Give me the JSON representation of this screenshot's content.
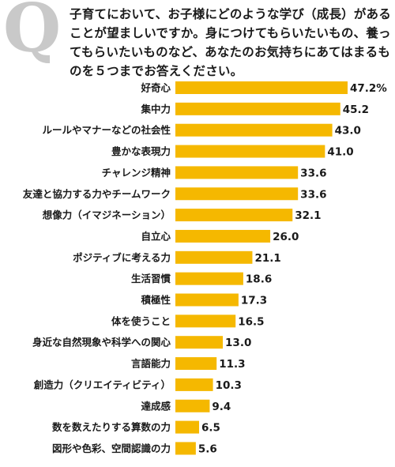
{
  "header": {
    "q_letter": "Q",
    "question": "子育てにおいて、お子様にどのような学び（成長）があることが望ましいですか。身につけてもらいたいもの、養ってもらいたいものなど、あなたのお気持ちにあてはまるものを５つまでお答えください。"
  },
  "colors": {
    "bar": "#f5b800"
  },
  "chart_data": {
    "type": "bar",
    "orientation": "horizontal",
    "title": "",
    "xlabel": "",
    "ylabel": "",
    "xlim": [
      0,
      47.2
    ],
    "grid": false,
    "legend": "none",
    "categories": [
      "好奇心",
      "集中力",
      "ルールやマナーなどの社会性",
      "豊かな表現力",
      "チャレンジ精神",
      "友達と協力する力やチームワーク",
      "想像力（イマジネーション）",
      "自立心",
      "ポジティブに考える力",
      "生活習慣",
      "積極性",
      "体を使うこと",
      "身近な自然現象や科学への関心",
      "言語能力",
      "創造力（クリエイティビティ）",
      "達成感",
      "数を数えたりする算数の力",
      "図形や色彩、空間認識の力"
    ],
    "values": [
      47.2,
      45.2,
      43.0,
      41.0,
      33.6,
      33.6,
      32.1,
      26.0,
      21.1,
      18.6,
      17.3,
      16.5,
      13.0,
      11.3,
      10.3,
      9.4,
      6.5,
      5.6
    ],
    "value_labels": [
      "47.2%",
      "45.2",
      "43.0",
      "41.0",
      "33.6",
      "33.6",
      "32.1",
      "26.0",
      "21.1",
      "18.6",
      "17.3",
      "16.5",
      "13.0",
      "11.3",
      "10.3",
      "9.4",
      "6.5",
      "5.6"
    ]
  }
}
